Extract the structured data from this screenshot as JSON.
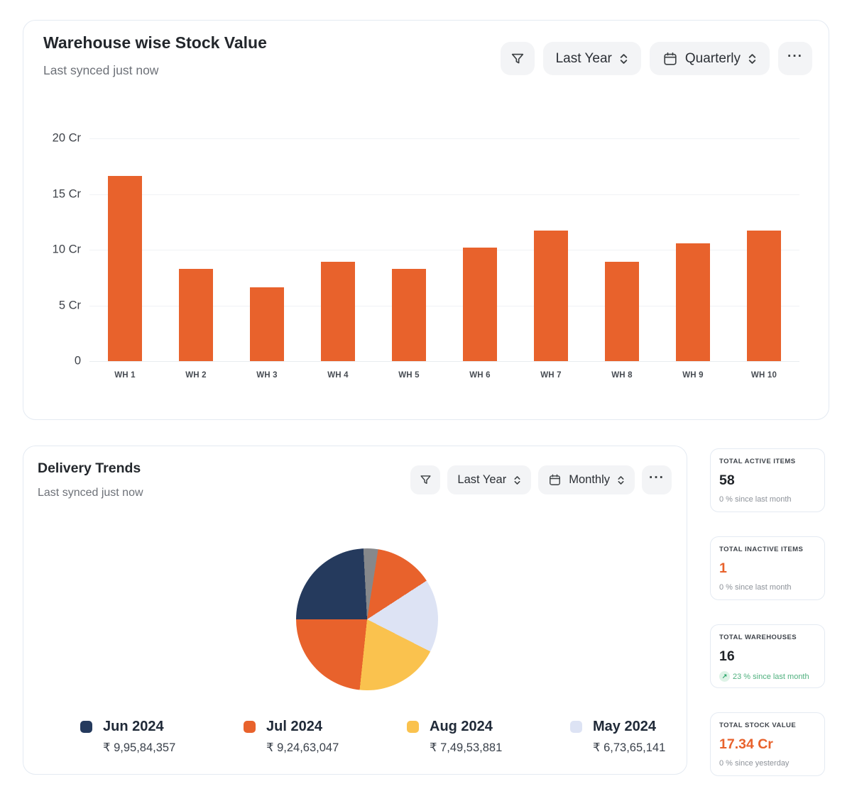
{
  "icons": {
    "more": "···",
    "trend_up_arrow": "↗"
  },
  "warehouse_card": {
    "title": "Warehouse wise Stock Value",
    "subtitle": "Last synced just now",
    "controls": {
      "period": "Last Year",
      "granularity": "Quarterly"
    },
    "chart_data": {
      "type": "bar",
      "title": "Warehouse wise Stock Value",
      "categories": [
        "WH 1",
        "WH 2",
        "WH 3",
        "WH 4",
        "WH 5",
        "WH 6",
        "WH 7",
        "WH 8",
        "WH 9",
        "WH 10"
      ],
      "values": [
        16.6,
        8.3,
        6.6,
        8.9,
        8.3,
        10.2,
        11.7,
        8.9,
        10.6,
        11.7
      ],
      "unit": "Cr",
      "ylim": [
        0,
        20
      ],
      "y_ticks": [
        "20 Cr",
        "15 Cr",
        "10 Cr",
        "5 Cr",
        "0"
      ],
      "grid": true,
      "bar_color": "#E8622C"
    }
  },
  "delivery_card": {
    "title": "Delivery Trends",
    "subtitle": "Last synced just now",
    "controls": {
      "period": "Last Year",
      "granularity": "Monthly"
    },
    "chart_data": {
      "type": "pie",
      "title": "Delivery Trends",
      "legend_position": "bottom",
      "slices_as_drawn_clockwise_from_top": [
        {
          "name": "gray-slice",
          "color": "#86888B",
          "start_deg": 0,
          "end_deg": 9
        },
        {
          "name": "orange-slice-1",
          "color": "#E8622C",
          "start_deg": 9,
          "end_deg": 57
        },
        {
          "name": "lavender-slice",
          "color": "#DDE3F4",
          "start_deg": 57,
          "end_deg": 117
        },
        {
          "name": "yellow-slice",
          "color": "#FAC24E",
          "start_deg": 117,
          "end_deg": 186
        },
        {
          "name": "orange-slice-2",
          "color": "#E8622C",
          "start_deg": 186,
          "end_deg": 270
        },
        {
          "name": "navy-slice",
          "color": "#253A5D",
          "start_deg": 270,
          "end_deg": 357
        },
        {
          "name": "gray-slice",
          "color": "#86888B",
          "start_deg": 357,
          "end_deg": 360
        }
      ]
    },
    "legend": [
      {
        "label": "Jun 2024",
        "value": "₹ 9,95,84,357",
        "color": "#253A5D"
      },
      {
        "label": "Jul 2024",
        "value": "₹ 9,24,63,047",
        "color": "#E8622C"
      },
      {
        "label": "Aug 2024",
        "value": "₹ 7,49,53,881",
        "color": "#FAC24E"
      },
      {
        "label": "May 2024",
        "value": "₹ 6,73,65,141",
        "color": "#DDE3F4"
      }
    ]
  },
  "stats": [
    {
      "label": "TOTAL ACTIVE ITEMS",
      "value": "58",
      "delta": "0 % since last month",
      "value_color": "#1f2328",
      "delta_color": "#8d9299",
      "trend_up": false
    },
    {
      "label": "TOTAL INACTIVE ITEMS",
      "value": "1",
      "delta": "0 % since last month",
      "value_color": "#E8622C",
      "delta_color": "#8d9299",
      "trend_up": false
    },
    {
      "label": "TOTAL WAREHOUSES",
      "value": "16",
      "delta": "23 % since last month",
      "value_color": "#1f2328",
      "delta_color": "#4FB07E",
      "trend_up": true
    },
    {
      "label": "TOTAL STOCK VALUE",
      "value": "17.34 Cr",
      "delta": "0 % since yesterday",
      "value_color": "#E8622C",
      "delta_color": "#8d9299",
      "trend_up": false
    }
  ]
}
